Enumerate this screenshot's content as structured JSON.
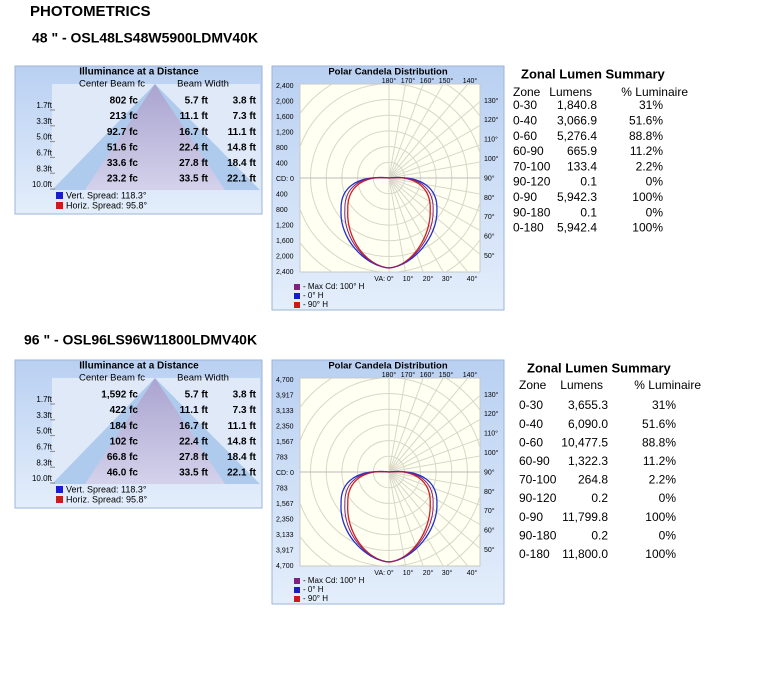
{
  "header": {
    "title": "PHOTOMETRICS"
  },
  "products": [
    {
      "heading": "48 \" - OSL48LS48W5900LDMV40K",
      "illuminance": {
        "title": "Illuminance at a Distance",
        "col1": "Center Beam fc",
        "col2": "Beam Width",
        "distances": [
          "1.7ft",
          "3.3ft",
          "5.0ft",
          "6.7ft",
          "8.3ft",
          "10.0ft"
        ],
        "rows": [
          [
            "802 fc",
            "5.7 ft",
            "3.8 ft"
          ],
          [
            "213 fc",
            "11.1 ft",
            "7.3 ft"
          ],
          [
            "92.7 fc",
            "16.7 ft",
            "11.1 ft"
          ],
          [
            "51.6 fc",
            "22.4 ft",
            "14.8 ft"
          ],
          [
            "33.6 fc",
            "27.8 ft",
            "18.4 ft"
          ],
          [
            "23.2 fc",
            "33.5 ft",
            "22.1 ft"
          ]
        ],
        "legend": [
          "Vert. Spread: 118.3°",
          "Horiz. Spread: 95.8°"
        ]
      },
      "polar": {
        "title": "Polar Candela Distribution",
        "left_ticks": [
          "2,400",
          "2,000",
          "1,600",
          "1,200",
          "800",
          "400",
          "CD: 0",
          "400",
          "800",
          "1,200",
          "1,600",
          "2,000",
          "2,400"
        ],
        "right_ticks": [
          "130°",
          "120°",
          "110°",
          "100°",
          "90°",
          "80°",
          "70°",
          "60°",
          "50°"
        ],
        "top_ticks": [
          "180°",
          "170°",
          "160°",
          "150°",
          "140°"
        ],
        "bottom_ticks": [
          "VA: 0°",
          "10°",
          "20°",
          "30°",
          "40°"
        ],
        "legend": [
          "- Max Cd: 100° H",
          "- 0° H",
          "- 90° H"
        ]
      },
      "zonal": {
        "title": "Zonal Lumen Summary",
        "headers": [
          "Zone",
          "Lumens",
          "% Luminaire"
        ],
        "rows": [
          [
            "0-30",
            "1,840.8",
            "31%"
          ],
          [
            "0-40",
            "3,066.9",
            "51.6%"
          ],
          [
            "0-60",
            "5,276.4",
            "88.8%"
          ],
          [
            "60-90",
            "665.9",
            "11.2%"
          ],
          [
            "70-100",
            "133.4",
            "2.2%"
          ],
          [
            "90-120",
            "0.1",
            "0%"
          ],
          [
            "0-90",
            "5,942.3",
            "100%"
          ],
          [
            "90-180",
            "0.1",
            "0%"
          ],
          [
            "0-180",
            "5,942.4",
            "100%"
          ]
        ]
      }
    },
    {
      "heading": "96 \" - OSL96LS96W11800LDMV40K",
      "illuminance": {
        "title": "Illuminance at a Distance",
        "col1": "Center Beam fc",
        "col2": "Beam Width",
        "distances": [
          "1.7ft",
          "3.3ft",
          "5.0ft",
          "6.7ft",
          "8.3ft",
          "10.0ft"
        ],
        "rows": [
          [
            "1,592 fc",
            "5.7 ft",
            "3.8 ft"
          ],
          [
            "422 fc",
            "11.1 ft",
            "7.3 ft"
          ],
          [
            "184 fc",
            "16.7 ft",
            "11.1 ft"
          ],
          [
            "102 fc",
            "22.4 ft",
            "14.8 ft"
          ],
          [
            "66.8 fc",
            "27.8 ft",
            "18.4 ft"
          ],
          [
            "46.0 fc",
            "33.5 ft",
            "22.1 ft"
          ]
        ],
        "legend": [
          "Vert. Spread: 118.3°",
          "Horiz. Spread: 95.8°"
        ]
      },
      "polar": {
        "title": "Polar Candela Distribution",
        "left_ticks": [
          "4,700",
          "3,917",
          "3,133",
          "2,350",
          "1,567",
          "783",
          "CD: 0",
          "783",
          "1,567",
          "2,350",
          "3,133",
          "3,917",
          "4,700"
        ],
        "right_ticks": [
          "130°",
          "120°",
          "110°",
          "100°",
          "90°",
          "80°",
          "70°",
          "60°",
          "50°"
        ],
        "top_ticks": [
          "180°",
          "170°",
          "160°",
          "150°",
          "140°"
        ],
        "bottom_ticks": [
          "VA: 0°",
          "10°",
          "20°",
          "30°",
          "40°"
        ],
        "legend": [
          "- Max Cd: 100° H",
          "- 0° H",
          "- 90° H"
        ]
      },
      "zonal": {
        "title": "Zonal Lumen Summary",
        "headers": [
          "Zone",
          "Lumens",
          "% Luminaire"
        ],
        "rows": [
          [
            "0-30",
            "3,655.3",
            "31%"
          ],
          [
            "0-40",
            "6,090.0",
            "51.6%"
          ],
          [
            "0-60",
            "10,477.5",
            "88.8%"
          ],
          [
            "60-90",
            "1,322.3",
            "11.2%"
          ],
          [
            "70-100",
            "264.8",
            "2.2%"
          ],
          [
            "90-120",
            "0.2",
            "0%"
          ],
          [
            "0-90",
            "11,799.8",
            "100%"
          ],
          [
            "90-180",
            "0.2",
            "0%"
          ],
          [
            "0-180",
            "11,800.0",
            "100%"
          ]
        ]
      }
    }
  ]
}
